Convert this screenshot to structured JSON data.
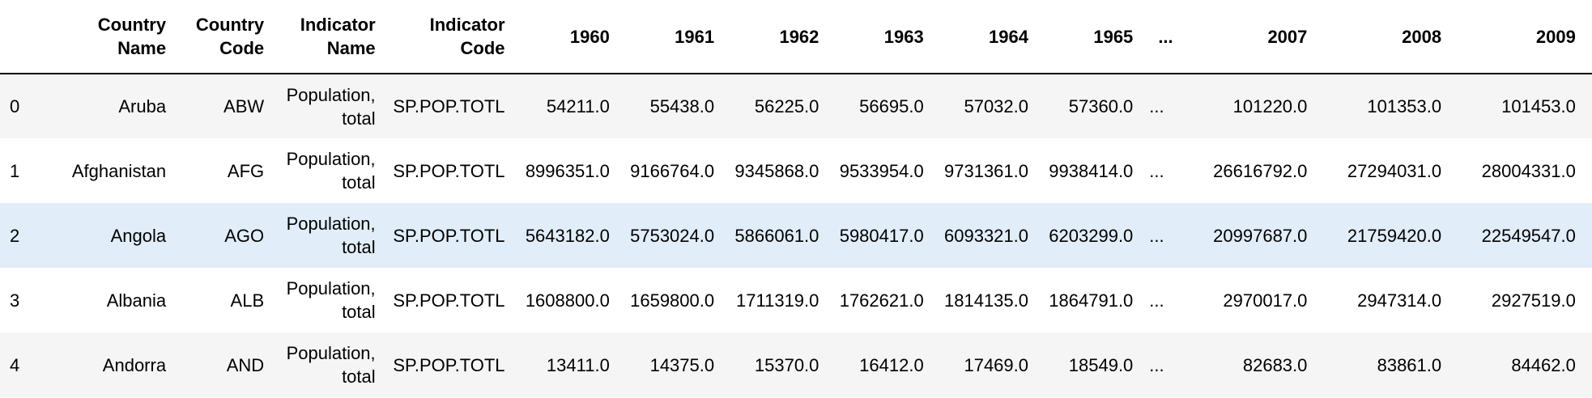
{
  "dataframe": {
    "index_header": "",
    "columns": [
      {
        "key": "country_name",
        "label": "Country Name",
        "lines": [
          "Country",
          "Name"
        ]
      },
      {
        "key": "country_code",
        "label": "Country Code",
        "lines": [
          "Country",
          "Code"
        ]
      },
      {
        "key": "indicator_name",
        "label": "Indicator Name",
        "lines": [
          "Indicator",
          "Name"
        ]
      },
      {
        "key": "indicator_code",
        "label": "Indicator Code",
        "lines": [
          "Indicator",
          "Code"
        ]
      },
      {
        "key": "y1960",
        "label": "1960"
      },
      {
        "key": "y1961",
        "label": "1961"
      },
      {
        "key": "y1962",
        "label": "1962"
      },
      {
        "key": "y1963",
        "label": "1963"
      },
      {
        "key": "y1964",
        "label": "1964"
      },
      {
        "key": "y1965",
        "label": "1965"
      },
      {
        "key": "ellipsis",
        "label": "..."
      },
      {
        "key": "y2007",
        "label": "2007"
      },
      {
        "key": "y2008",
        "label": "2008"
      },
      {
        "key": "y2009",
        "label": "2009"
      }
    ],
    "rows": [
      {
        "index": "0",
        "country_name": "Aruba",
        "country_code": "ABW",
        "indicator_name": "Population, total",
        "indicator_name_lines": [
          "Population,",
          "total"
        ],
        "indicator_code": "SP.POP.TOTL",
        "y1960": "54211.0",
        "y1961": "55438.0",
        "y1962": "56225.0",
        "y1963": "56695.0",
        "y1964": "57032.0",
        "y1965": "57360.0",
        "ellipsis": "...",
        "y2007": "101220.0",
        "y2008": "101353.0",
        "y2009": "101453.0",
        "overflow": ""
      },
      {
        "index": "1",
        "country_name": "Afghanistan",
        "country_code": "AFG",
        "indicator_name": "Population, total",
        "indicator_name_lines": [
          "Population,",
          "total"
        ],
        "indicator_code": "SP.POP.TOTL",
        "y1960": "8996351.0",
        "y1961": "9166764.0",
        "y1962": "9345868.0",
        "y1963": "9533954.0",
        "y1964": "9731361.0",
        "y1965": "9938414.0",
        "ellipsis": "...",
        "y2007": "26616792.0",
        "y2008": "27294031.0",
        "y2009": "28004331.0",
        "overflow": "2"
      },
      {
        "index": "2",
        "country_name": "Angola",
        "country_code": "AGO",
        "indicator_name": "Population, total",
        "indicator_name_lines": [
          "Population,",
          "total"
        ],
        "indicator_code": "SP.POP.TOTL",
        "y1960": "5643182.0",
        "y1961": "5753024.0",
        "y1962": "5866061.0",
        "y1963": "5980417.0",
        "y1964": "6093321.0",
        "y1965": "6203299.0",
        "ellipsis": "...",
        "y2007": "20997687.0",
        "y2008": "21759420.0",
        "y2009": "22549547.0",
        "overflow": "2"
      },
      {
        "index": "3",
        "country_name": "Albania",
        "country_code": "ALB",
        "indicator_name": "Population, total",
        "indicator_name_lines": [
          "Population,",
          "total"
        ],
        "indicator_code": "SP.POP.TOTL",
        "y1960": "1608800.0",
        "y1961": "1659800.0",
        "y1962": "1711319.0",
        "y1963": "1762621.0",
        "y1964": "1814135.0",
        "y1965": "1864791.0",
        "ellipsis": "...",
        "y2007": "2970017.0",
        "y2008": "2947314.0",
        "y2009": "2927519.0",
        "overflow": ""
      },
      {
        "index": "4",
        "country_name": "Andorra",
        "country_code": "AND",
        "indicator_name": "Population, total",
        "indicator_name_lines": [
          "Population,",
          "total"
        ],
        "indicator_code": "SP.POP.TOTL",
        "y1960": "13411.0",
        "y1961": "14375.0",
        "y1962": "15370.0",
        "y1963": "16412.0",
        "y1964": "17469.0",
        "y1965": "18549.0",
        "ellipsis": "...",
        "y2007": "82683.0",
        "y2008": "83861.0",
        "y2009": "84462.0",
        "overflow": ""
      }
    ]
  },
  "colors": {
    "row_odd": "#f5f5f5",
    "row_even": "#ffffff",
    "row_hover": "#e1edf9",
    "header_rule": "#000000",
    "text": "#000000"
  }
}
